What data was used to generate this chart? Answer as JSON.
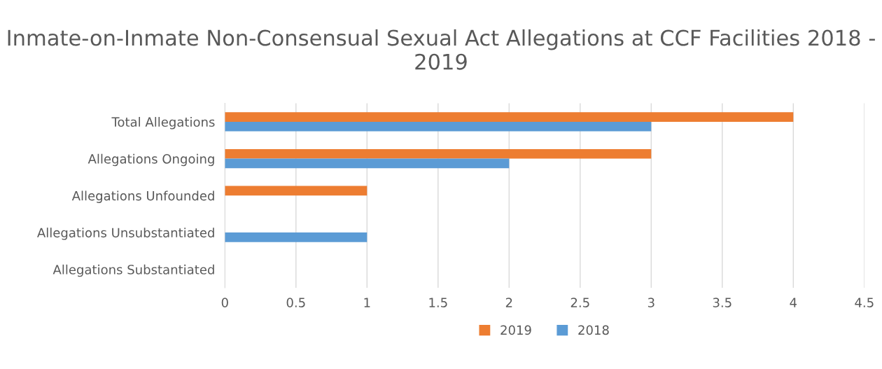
{
  "chart_data": {
    "type": "bar",
    "orientation": "horizontal",
    "title": "Inmate-on-Inmate Non-Consensual Sexual Act Allegations at CCF Facilities 2018 - 2019",
    "categories": [
      "Total Allegations",
      "Allegations Ongoing",
      "Allegations Unfounded",
      "Allegations Unsubstantiated",
      "Allegations Substantiated"
    ],
    "series": [
      {
        "name": "2019",
        "color": "#ed7d31",
        "values": [
          4,
          3,
          1,
          0,
          0
        ]
      },
      {
        "name": "2018",
        "color": "#5b9bd5",
        "values": [
          3,
          2,
          0,
          1,
          0
        ]
      }
    ],
    "xlim": [
      0,
      4.5
    ],
    "xticks": [
      0,
      0.5,
      1,
      1.5,
      2,
      2.5,
      3,
      3.5,
      4,
      4.5
    ],
    "grid": "x",
    "legend": "bottom"
  }
}
